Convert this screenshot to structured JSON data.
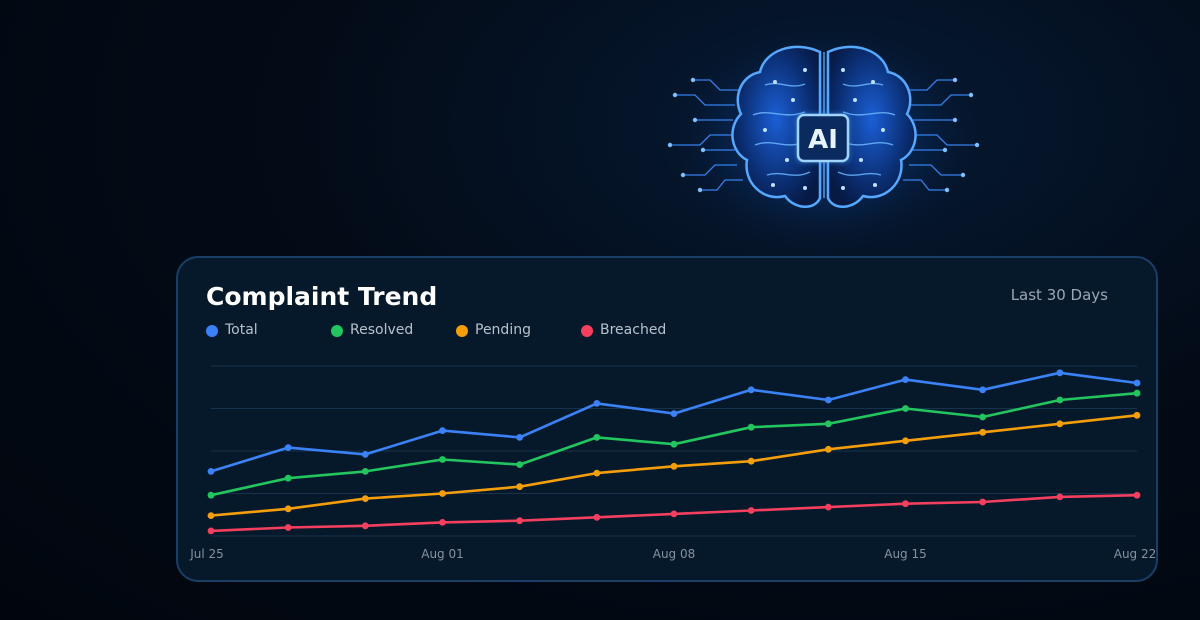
{
  "card": {
    "title": "Complaint Trend",
    "range_label": "Last 30 Days"
  },
  "hero": {
    "chip_label": "AI",
    "icon": "ai-brain-icon"
  },
  "colors": {
    "background": "#020812",
    "card": "#06192b",
    "card_border": "#1a3e66",
    "grid": "#17324d",
    "tick_text": "#8592a0"
  },
  "chart_data": {
    "type": "line",
    "title": "Complaint Trend",
    "x_ticks": [
      "Jul 25",
      "Aug 01",
      "Aug 08",
      "Aug 15",
      "Aug 22"
    ],
    "point_count": 13,
    "ylim": [
      0,
      100
    ],
    "grid": true,
    "legend_position": "top-left",
    "series": [
      {
        "name": "Total",
        "color": "#3b82f6",
        "values": [
          38,
          52,
          48,
          62,
          58,
          78,
          72,
          86,
          80,
          92,
          86,
          96,
          90
        ]
      },
      {
        "name": "Resolved",
        "color": "#22c55e",
        "values": [
          24,
          34,
          38,
          45,
          42,
          58,
          54,
          64,
          66,
          75,
          70,
          80,
          84
        ]
      },
      {
        "name": "Pending",
        "color": "#f59e0b",
        "values": [
          12,
          16,
          22,
          25,
          29,
          37,
          41,
          44,
          51,
          56,
          61,
          66,
          71
        ]
      },
      {
        "name": "Breached",
        "color": "#f43f5e",
        "values": [
          3,
          5,
          6,
          8,
          9,
          11,
          13,
          15,
          17,
          19,
          20,
          23,
          24
        ]
      }
    ]
  }
}
